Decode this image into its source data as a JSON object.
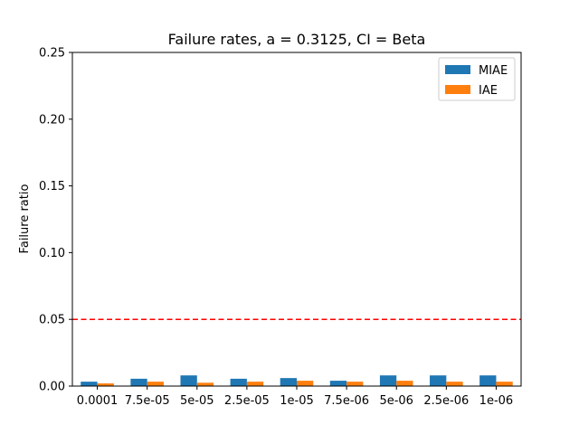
{
  "chart_data": {
    "type": "bar",
    "title": "Failure rates, a = 0.3125, CI = Beta",
    "xlabel": "",
    "ylabel": "Failure ratio",
    "ylim": [
      0,
      0.25
    ],
    "yticks": [
      "0.00",
      "0.05",
      "0.10",
      "0.15",
      "0.20",
      "0.25"
    ],
    "categories": [
      "0.0001",
      "7.5e-05",
      "5e-05",
      "2.5e-05",
      "1e-05",
      "7.5e-06",
      "5e-06",
      "2.5e-06",
      "1e-06"
    ],
    "series": [
      {
        "name": "MIAE",
        "color": "#1f77b4",
        "values": [
          0.0033,
          0.0055,
          0.008,
          0.0055,
          0.006,
          0.004,
          0.008,
          0.008,
          0.008
        ]
      },
      {
        "name": "IAE",
        "color": "#ff7f0e",
        "values": [
          0.002,
          0.0033,
          0.0025,
          0.0033,
          0.004,
          0.0033,
          0.004,
          0.0033,
          0.0033
        ]
      }
    ],
    "reference_line": {
      "y": 0.05,
      "color": "#ff0000",
      "style": "dashed"
    },
    "legend_position": "top-right",
    "grid": false
  }
}
